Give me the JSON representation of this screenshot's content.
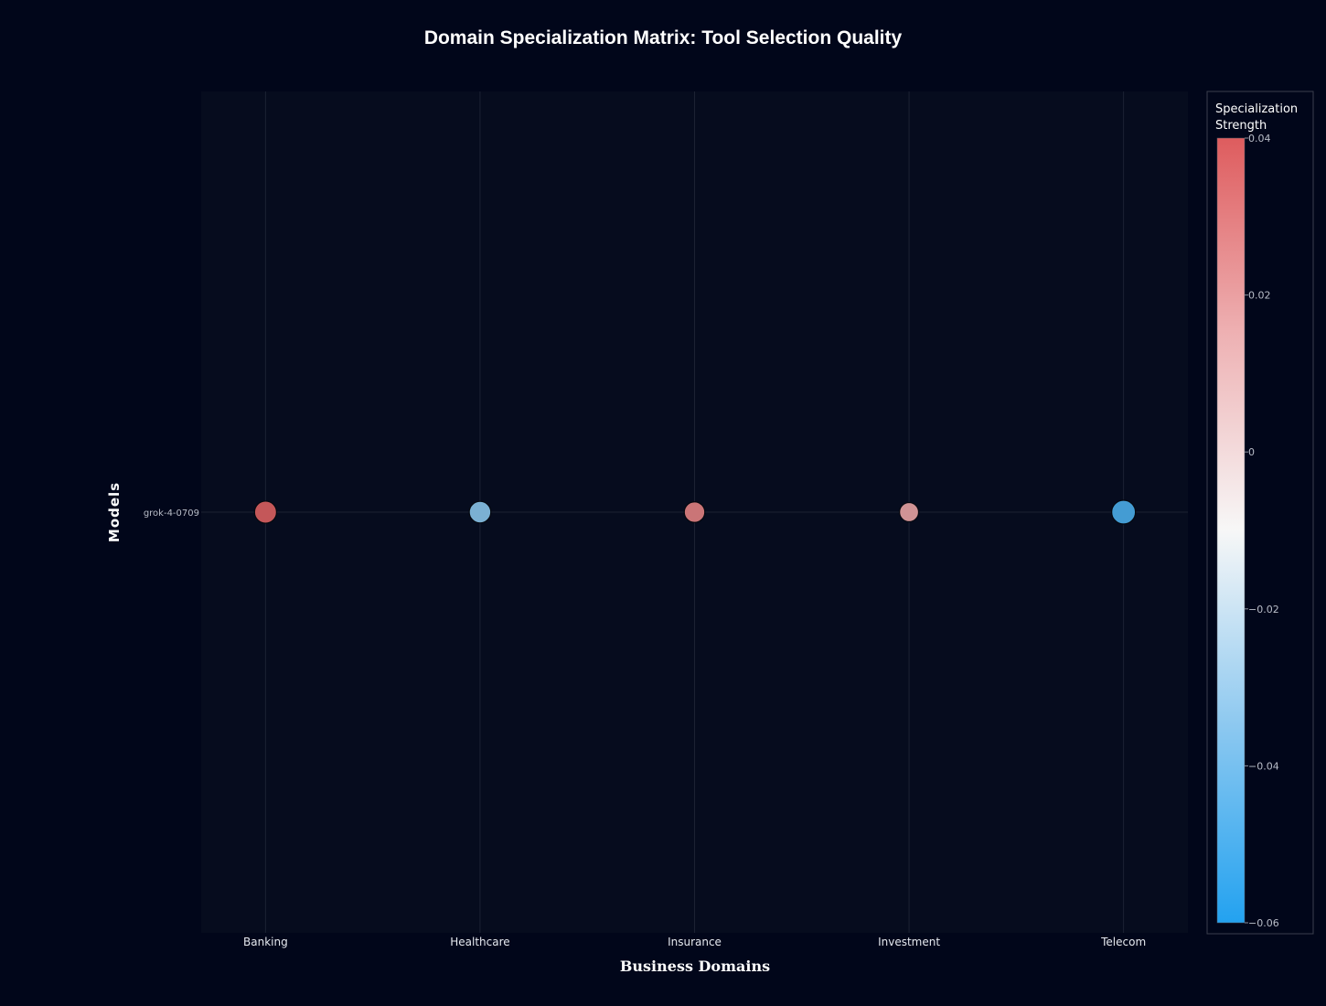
{
  "chart_data": {
    "type": "scatter",
    "title": "Domain Specialization Matrix: Tool Selection Quality",
    "xlabel": "Business Domains",
    "ylabel": "Models",
    "categories": [
      "Banking",
      "Healthcare",
      "Insurance",
      "Investment",
      "Telecom"
    ],
    "y_categories": [
      "grok-4-0709"
    ],
    "series": [
      {
        "model": "grok-4-0709",
        "values": [
          0.038,
          -0.035,
          0.028,
          0.018,
          -0.05
        ]
      }
    ],
    "colorbar": {
      "title_lines": [
        "Specialization",
        "Strength"
      ],
      "range": [
        -0.06,
        0.04
      ],
      "tick_values": [
        0.04,
        0.02,
        0,
        -0.02,
        -0.04,
        -0.06
      ],
      "tick_labels": [
        "0.04",
        "0.02",
        "0",
        "−0.02",
        "−0.04",
        "−0.06"
      ],
      "colorscale": [
        "#23a2f0",
        "#8cc8f0",
        "#f7f7f7",
        "#eeb1b3",
        "#de5c5e"
      ]
    },
    "grid": true,
    "colors": {
      "page_background": "#01061a",
      "plot_background": "#060c1e",
      "grid": "#1c2233",
      "marker_outline": "#05080f"
    }
  }
}
